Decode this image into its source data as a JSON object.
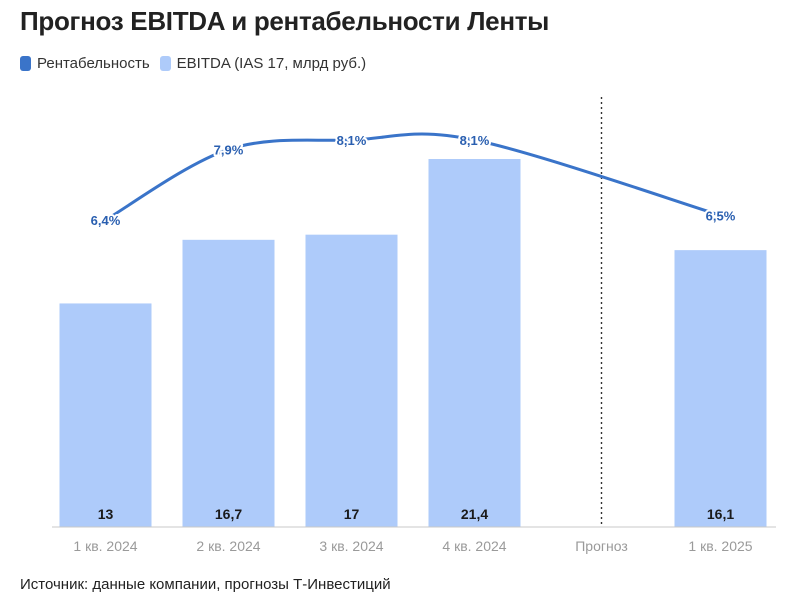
{
  "title": "Прогноз EBITDA и рентабельности Ленты",
  "legend": {
    "line_label": "Рентабельность",
    "bar_label": "EBITDA (IAS 17, млрд руб.)"
  },
  "source": "Источник: данные компании, прогнозы Т-Инвестиций",
  "colors": {
    "bar": "#aecbfa",
    "line": "#3a74c9",
    "divider": "#333333",
    "axis": "#c8c8c8"
  },
  "chart_data": {
    "type": "bar",
    "categories": [
      "1 кв. 2024",
      "2 кв. 2024",
      "3 кв. 2024",
      "4 кв. 2024",
      "Прогноз",
      "1 кв. 2025"
    ],
    "series": [
      {
        "name": "EBITDA (IAS 17, млрд руб.)",
        "type": "bar",
        "values": [
          13,
          16.7,
          17,
          21.4,
          null,
          16.1
        ],
        "labels": [
          "13",
          "16,7",
          "17",
          "21,4",
          "",
          "16,1"
        ]
      },
      {
        "name": "Рентабельность",
        "type": "line",
        "values": [
          6.4,
          7.9,
          8.1,
          8.1,
          null,
          6.5
        ],
        "labels": [
          "6,4%",
          "7,9%",
          "8,1%",
          "8,1%",
          "",
          "6,5%"
        ]
      }
    ],
    "divider_category": "Прогноз",
    "ylim_bar": [
      0,
      21.4
    ],
    "ylim_line": [
      6.4,
      8.1
    ],
    "grid": false
  }
}
